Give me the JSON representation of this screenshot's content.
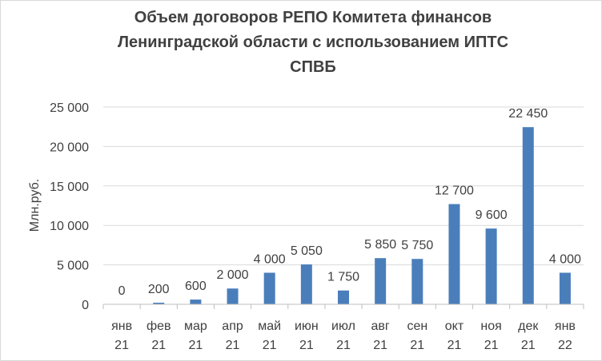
{
  "chart_data": {
    "type": "bar",
    "title_lines": [
      "Объем  договоров РЕПО Комитета финансов",
      "Ленинградской области с использованием ИПТС",
      "СПВБ"
    ],
    "ylabel": "Млн.руб.",
    "xlabel": "",
    "ylim": [
      0,
      25000
    ],
    "yticks": [
      0,
      5000,
      10000,
      15000,
      20000,
      25000
    ],
    "ytick_labels": [
      "0",
      "5 000",
      "10 000",
      "15 000",
      "20 000",
      "25 000"
    ],
    "grid": true,
    "legend": false,
    "categories": [
      [
        "янв",
        "21"
      ],
      [
        "фев",
        "21"
      ],
      [
        "мар",
        "21"
      ],
      [
        "апр",
        "21"
      ],
      [
        "май",
        "21"
      ],
      [
        "июн",
        "21"
      ],
      [
        "июл",
        "21"
      ],
      [
        "авг",
        "21"
      ],
      [
        "сен",
        "21"
      ],
      [
        "окт",
        "21"
      ],
      [
        "ноя",
        "21"
      ],
      [
        "дек",
        "21"
      ],
      [
        "янв",
        "22"
      ]
    ],
    "values": [
      0,
      200,
      600,
      2000,
      4000,
      5050,
      1750,
      5850,
      5750,
      12700,
      9600,
      22450,
      4000
    ],
    "data_labels": [
      "0",
      "200",
      "600",
      "2 000",
      "4 000",
      "5 050",
      "1 750",
      "5 850",
      "5 750",
      "12 700",
      "9 600",
      "22 450",
      "4 000"
    ],
    "colors": {
      "bar": "#4a7ebb",
      "grid": "#d9d9d9",
      "axis": "#bfbfbf",
      "text": "#404040"
    }
  }
}
